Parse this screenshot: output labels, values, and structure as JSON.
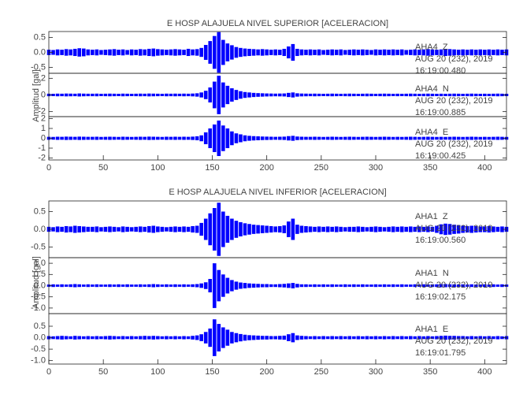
{
  "chart_data": [
    {
      "type": "waveform",
      "title": "E HOSP ALAJUELA NIVEL SUPERIOR [ACELERACION]",
      "ylabel": "Amplitud [gal]",
      "xlim": [
        0,
        420
      ],
      "xticks": [
        0,
        50,
        100,
        150,
        200,
        250,
        300,
        350,
        400
      ],
      "x": [
        0,
        4,
        8,
        12,
        16,
        20,
        24,
        28,
        32,
        36,
        40,
        44,
        48,
        52,
        56,
        60,
        64,
        68,
        72,
        76,
        80,
        84,
        88,
        92,
        96,
        100,
        104,
        108,
        112,
        116,
        120,
        124,
        128,
        132,
        136,
        140,
        144,
        148,
        152,
        156,
        160,
        164,
        168,
        172,
        176,
        180,
        184,
        188,
        192,
        196,
        200,
        204,
        208,
        212,
        216,
        220,
        224,
        228,
        232,
        236,
        240,
        244,
        248,
        252,
        256,
        260,
        264,
        268,
        272,
        276,
        280,
        284,
        288,
        292,
        296,
        300,
        304,
        308,
        312,
        316,
        320,
        324,
        328,
        332,
        336,
        340,
        344,
        348,
        352,
        356,
        360,
        364,
        368,
        372,
        376,
        380,
        384,
        388,
        392,
        396,
        400,
        404,
        408,
        412,
        416,
        420
      ],
      "traces": [
        {
          "station": "AHA4  Z",
          "date": "AUG 20 (232), 2019",
          "time": "16:19:00.480",
          "color": "#0000ff",
          "ylim": [
            -0.7,
            0.7
          ],
          "yticks": [
            {
              "value": -0.5,
              "label": "-0.5"
            },
            {
              "value": 0,
              "label": "0.0"
            },
            0.5
          ],
          "values": [
            0.09,
            0.08,
            0.1,
            0.09,
            0.11,
            0.1,
            0.12,
            0.14,
            0.13,
            0.1,
            0.09,
            0.1,
            0.08,
            0.09,
            0.1,
            0.11,
            0.09,
            0.1,
            0.08,
            0.1,
            0.09,
            0.11,
            0.1,
            0.12,
            0.13,
            0.11,
            0.1,
            0.09,
            0.1,
            0.11,
            0.1,
            0.09,
            0.12,
            0.1,
            0.11,
            0.15,
            0.25,
            0.38,
            0.55,
            0.68,
            0.42,
            0.3,
            0.24,
            0.18,
            0.15,
            0.13,
            0.12,
            0.11,
            0.1,
            0.11,
            0.1,
            0.09,
            0.1,
            0.09,
            0.12,
            0.2,
            0.28,
            0.12,
            0.1,
            0.09,
            0.1,
            0.09,
            0.1,
            0.08,
            0.09,
            0.1,
            0.09,
            0.1,
            0.08,
            0.09,
            0.1,
            0.09,
            0.1,
            0.09,
            0.08,
            0.1,
            0.09,
            0.1,
            0.09,
            0.1,
            0.09,
            0.1,
            0.08,
            0.09,
            0.1,
            0.09,
            0.1,
            0.11,
            0.1,
            0.09,
            0.1,
            0.12,
            0.11,
            0.1,
            0.09,
            0.1,
            0.09,
            0.1,
            0.09,
            0.1,
            0.09,
            0.1,
            0.09,
            0.1,
            0.09,
            0.1
          ]
        },
        {
          "station": "AHA4  N",
          "date": "AUG 20 (232), 2019",
          "time": "16:19:00.885",
          "color": "#0000ff",
          "ylim": [
            -2.6,
            2.6
          ],
          "yticks": [
            -2,
            0,
            2
          ],
          "values": [
            0.15,
            0.14,
            0.16,
            0.15,
            0.17,
            0.16,
            0.15,
            0.18,
            0.16,
            0.15,
            0.15,
            0.16,
            0.14,
            0.15,
            0.16,
            0.15,
            0.14,
            0.16,
            0.15,
            0.14,
            0.15,
            0.16,
            0.15,
            0.17,
            0.16,
            0.15,
            0.14,
            0.16,
            0.15,
            0.16,
            0.15,
            0.16,
            0.15,
            0.17,
            0.2,
            0.3,
            0.5,
            0.9,
            1.6,
            2.3,
            1.5,
            1.1,
            0.8,
            0.6,
            0.45,
            0.35,
            0.3,
            0.25,
            0.22,
            0.2,
            0.18,
            0.17,
            0.16,
            0.17,
            0.18,
            0.25,
            0.3,
            0.2,
            0.17,
            0.16,
            0.15,
            0.16,
            0.15,
            0.14,
            0.15,
            0.16,
            0.15,
            0.14,
            0.15,
            0.16,
            0.15,
            0.14,
            0.15,
            0.16,
            0.15,
            0.14,
            0.15,
            0.16,
            0.15,
            0.14,
            0.15,
            0.14,
            0.15,
            0.16,
            0.15,
            0.14,
            0.15,
            0.16,
            0.15,
            0.14,
            0.15,
            0.14,
            0.15,
            0.16,
            0.15,
            0.14,
            0.15,
            0.16,
            0.15,
            0.14,
            0.15,
            0.14,
            0.15,
            0.16,
            0.15,
            0.14
          ]
        },
        {
          "station": "AHA4  E",
          "date": "AUG 20 (232), 2019",
          "time": "16:19:00.425",
          "color": "#0000ff",
          "ylim": [
            -2.2,
            2.2
          ],
          "yticks": [
            -2,
            -1,
            0,
            1,
            2
          ],
          "values": [
            0.15,
            0.14,
            0.16,
            0.15,
            0.17,
            0.16,
            0.15,
            0.17,
            0.16,
            0.15,
            0.15,
            0.16,
            0.14,
            0.15,
            0.16,
            0.15,
            0.14,
            0.16,
            0.15,
            0.14,
            0.15,
            0.16,
            0.15,
            0.17,
            0.16,
            0.15,
            0.14,
            0.16,
            0.15,
            0.16,
            0.15,
            0.16,
            0.15,
            0.17,
            0.2,
            0.3,
            0.6,
            1.0,
            1.4,
            1.8,
            1.3,
            1.0,
            0.7,
            0.5,
            0.4,
            0.3,
            0.25,
            0.22,
            0.2,
            0.18,
            0.17,
            0.16,
            0.15,
            0.16,
            0.17,
            0.22,
            0.25,
            0.18,
            0.16,
            0.15,
            0.15,
            0.16,
            0.15,
            0.14,
            0.15,
            0.16,
            0.15,
            0.14,
            0.15,
            0.16,
            0.15,
            0.14,
            0.15,
            0.16,
            0.15,
            0.14,
            0.15,
            0.16,
            0.15,
            0.14,
            0.15,
            0.14,
            0.15,
            0.16,
            0.15,
            0.14,
            0.15,
            0.16,
            0.15,
            0.14,
            0.15,
            0.14,
            0.15,
            0.16,
            0.15,
            0.14,
            0.15,
            0.16,
            0.15,
            0.14,
            0.15,
            0.14,
            0.15,
            0.16,
            0.15,
            0.14
          ]
        }
      ]
    },
    {
      "type": "waveform",
      "title": "E HOSP ALAJUELA NIVEL INFERIOR [ACELERACION]",
      "ylabel": "Amplitud [gal]",
      "xlim": [
        0,
        420
      ],
      "xticks": [
        0,
        50,
        100,
        150,
        200,
        250,
        300,
        350,
        400
      ],
      "x": [
        0,
        4,
        8,
        12,
        16,
        20,
        24,
        28,
        32,
        36,
        40,
        44,
        48,
        52,
        56,
        60,
        64,
        68,
        72,
        76,
        80,
        84,
        88,
        92,
        96,
        100,
        104,
        108,
        112,
        116,
        120,
        124,
        128,
        132,
        136,
        140,
        144,
        148,
        152,
        156,
        160,
        164,
        168,
        172,
        176,
        180,
        184,
        188,
        192,
        196,
        200,
        204,
        208,
        212,
        216,
        220,
        224,
        228,
        232,
        236,
        240,
        244,
        248,
        252,
        256,
        260,
        264,
        268,
        272,
        276,
        280,
        284,
        288,
        292,
        296,
        300,
        304,
        308,
        312,
        316,
        320,
        324,
        328,
        332,
        336,
        340,
        344,
        348,
        352,
        356,
        360,
        364,
        368,
        372,
        376,
        380,
        384,
        388,
        392,
        396,
        400,
        404,
        408,
        412,
        416,
        420
      ],
      "traces": [
        {
          "station": "AHA1  Z",
          "date": "AUG 20 (232), 2019",
          "time": "16:19:00.560",
          "color": "#0000ff",
          "ylim": [
            -0.8,
            0.8
          ],
          "yticks": [
            {
              "value": -0.5,
              "label": "-0.5"
            },
            {
              "value": 0,
              "label": "0.0"
            },
            0.5
          ],
          "values": [
            0.07,
            0.06,
            0.08,
            0.07,
            0.09,
            0.08,
            0.1,
            0.09,
            0.08,
            0.07,
            0.07,
            0.08,
            0.06,
            0.07,
            0.08,
            0.07,
            0.06,
            0.08,
            0.07,
            0.06,
            0.07,
            0.08,
            0.07,
            0.09,
            0.1,
            0.08,
            0.07,
            0.06,
            0.07,
            0.08,
            0.07,
            0.08,
            0.07,
            0.09,
            0.1,
            0.18,
            0.3,
            0.45,
            0.6,
            0.75,
            0.5,
            0.38,
            0.3,
            0.24,
            0.2,
            0.17,
            0.15,
            0.13,
            0.12,
            0.11,
            0.1,
            0.09,
            0.08,
            0.09,
            0.11,
            0.22,
            0.3,
            0.13,
            0.1,
            0.09,
            0.08,
            0.07,
            0.08,
            0.07,
            0.08,
            0.07,
            0.08,
            0.07,
            0.06,
            0.07,
            0.07,
            0.08,
            0.07,
            0.06,
            0.07,
            0.08,
            0.07,
            0.06,
            0.07,
            0.08,
            0.07,
            0.08,
            0.07,
            0.08,
            0.07,
            0.08,
            0.07,
            0.08,
            0.07,
            0.1,
            0.14,
            0.16,
            0.15,
            0.13,
            0.12,
            0.1,
            0.09,
            0.1,
            0.09,
            0.08,
            0.08,
            0.09,
            0.08,
            0.07,
            0.08,
            0.07
          ]
        },
        {
          "station": "AHA1  N",
          "date": "AUG 20 (232), 2019",
          "time": "16:19:02.175",
          "color": "#0000ff",
          "ylim": [
            -1.25,
            1.25
          ],
          "yticks": [
            {
              "value": -1,
              "label": "-1.0"
            },
            {
              "value": -0.5,
              "label": "-0.5"
            },
            {
              "value": 0,
              "label": "0.0"
            },
            0.5,
            {
              "value": 1,
              "label": "1.0"
            }
          ],
          "values": [
            0.05,
            0.06,
            0.05,
            0.06,
            0.05,
            0.06,
            0.07,
            0.06,
            0.05,
            0.06,
            0.05,
            0.06,
            0.05,
            0.05,
            0.06,
            0.05,
            0.06,
            0.05,
            0.06,
            0.05,
            0.05,
            0.06,
            0.05,
            0.06,
            0.07,
            0.06,
            0.05,
            0.06,
            0.05,
            0.06,
            0.05,
            0.06,
            0.05,
            0.06,
            0.07,
            0.1,
            0.15,
            0.3,
            1.0,
            0.7,
            0.5,
            0.35,
            0.25,
            0.18,
            0.14,
            0.12,
            0.1,
            0.09,
            0.08,
            0.07,
            0.07,
            0.06,
            0.06,
            0.07,
            0.08,
            0.1,
            0.12,
            0.08,
            0.06,
            0.06,
            0.05,
            0.06,
            0.05,
            0.06,
            0.05,
            0.06,
            0.05,
            0.05,
            0.06,
            0.05,
            0.06,
            0.05,
            0.06,
            0.05,
            0.05,
            0.06,
            0.05,
            0.06,
            0.05,
            0.06,
            0.05,
            0.06,
            0.05,
            0.05,
            0.06,
            0.05,
            0.06,
            0.05,
            0.06,
            0.06,
            0.07,
            0.07,
            0.06,
            0.06,
            0.05,
            0.06,
            0.05,
            0.06,
            0.05,
            0.05,
            0.06,
            0.05,
            0.06,
            0.05,
            0.06,
            0.05
          ]
        },
        {
          "station": "AHA1  E",
          "date": "AUG 20 (232), 2019",
          "time": "16:19:01.795",
          "color": "#0000ff",
          "ylim": [
            -1.15,
            1.05
          ],
          "yticks": [
            {
              "value": -1,
              "label": "-1.0"
            },
            {
              "value": -0.5,
              "label": "-0.5"
            },
            {
              "value": 0,
              "label": "0.0"
            },
            0.5
          ],
          "values": [
            0.07,
            0.06,
            0.07,
            0.08,
            0.07,
            0.06,
            0.08,
            0.07,
            0.06,
            0.07,
            0.06,
            0.07,
            0.06,
            0.07,
            0.08,
            0.07,
            0.06,
            0.07,
            0.06,
            0.07,
            0.06,
            0.07,
            0.08,
            0.07,
            0.08,
            0.07,
            0.06,
            0.07,
            0.06,
            0.07,
            0.06,
            0.07,
            0.06,
            0.08,
            0.1,
            0.15,
            0.25,
            0.4,
            0.8,
            0.6,
            0.45,
            0.35,
            0.25,
            0.2,
            0.16,
            0.13,
            0.11,
            0.1,
            0.09,
            0.08,
            0.08,
            0.07,
            0.07,
            0.08,
            0.09,
            0.15,
            0.2,
            0.1,
            0.08,
            0.07,
            0.06,
            0.07,
            0.06,
            0.07,
            0.06,
            0.07,
            0.06,
            0.07,
            0.06,
            0.07,
            0.06,
            0.07,
            0.06,
            0.07,
            0.06,
            0.07,
            0.06,
            0.07,
            0.06,
            0.07,
            0.06,
            0.07,
            0.06,
            0.07,
            0.06,
            0.07,
            0.06,
            0.07,
            0.06,
            0.07,
            0.08,
            0.09,
            0.08,
            0.08,
            0.07,
            0.07,
            0.06,
            0.07,
            0.06,
            0.07,
            0.06,
            0.07,
            0.06,
            0.07,
            0.06,
            0.07
          ]
        }
      ]
    }
  ]
}
